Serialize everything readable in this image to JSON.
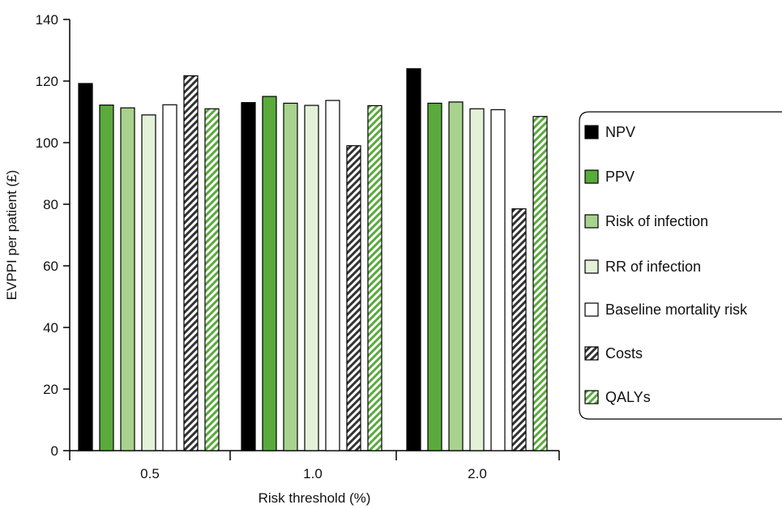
{
  "chart_data": {
    "type": "bar",
    "title": "",
    "xlabel": "Risk threshold (%)",
    "ylabel": "EVPPI per patient (£)",
    "ylim": [
      0,
      140
    ],
    "yticks": [
      0,
      20,
      40,
      60,
      80,
      100,
      120,
      140
    ],
    "categories": [
      "0.5",
      "1.0",
      "2.0"
    ],
    "legend_position": "right",
    "series": [
      {
        "name": "NPV",
        "values": [
          119.2,
          113.0,
          124.0
        ],
        "color": "#000000",
        "pattern": "solid"
      },
      {
        "name": "PPV",
        "values": [
          112.2,
          115.0,
          112.8
        ],
        "color": "#5aaa3c",
        "pattern": "solid"
      },
      {
        "name": "Risk of infection",
        "values": [
          111.3,
          112.8,
          113.2
        ],
        "color": "#a8d28e",
        "pattern": "solid"
      },
      {
        "name": "RR of infection",
        "values": [
          109.0,
          112.1,
          111.0
        ],
        "color": "#e3f1d8",
        "pattern": "solid"
      },
      {
        "name": "Baseline mortality risk",
        "values": [
          112.3,
          113.7,
          110.7
        ],
        "color": "#ffffff",
        "pattern": "solid"
      },
      {
        "name": "Costs",
        "values": [
          121.7,
          99.0,
          78.5
        ],
        "color": "#333333",
        "pattern": "hatch"
      },
      {
        "name": "QALYs",
        "values": [
          111.0,
          112.0,
          108.5
        ],
        "color": "#5aaa3c",
        "pattern": "hatch"
      }
    ]
  }
}
